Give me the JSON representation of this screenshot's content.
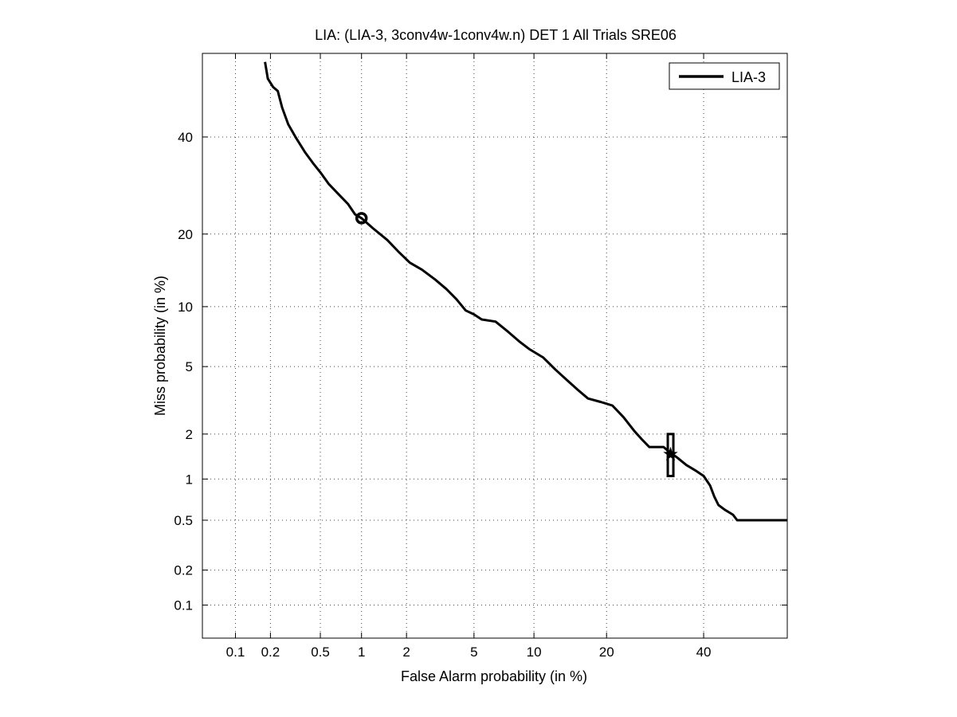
{
  "chart_data": {
    "type": "line",
    "title": "LIA: (LIA-3, 3conv4w-1conv4w.n) DET 1 All Trials SRE06",
    "xlabel": "False Alarm probability (in %)",
    "ylabel": "Miss probability (in %)",
    "x_scale": "normal-deviate (probit)",
    "y_scale": "normal-deviate (probit)",
    "xlim": [
      0.05,
      60
    ],
    "ylim": [
      0.05,
      60
    ],
    "x_ticks": [
      0.1,
      0.2,
      0.5,
      1,
      2,
      5,
      10,
      20,
      40
    ],
    "x_tick_labels": [
      "0.1",
      "0.2",
      "0.5",
      "1",
      "2",
      "5",
      "10",
      "20",
      "40"
    ],
    "y_ticks": [
      0.1,
      0.2,
      0.5,
      1,
      2,
      5,
      10,
      20,
      40
    ],
    "y_tick_labels": [
      "0.1",
      "0.2",
      "0.5",
      "1",
      "2",
      "5",
      "10",
      "20",
      "40"
    ],
    "grid": true,
    "legend_position": "top-right",
    "series": [
      {
        "name": "LIA-3",
        "color": "#000000",
        "points": [
          [
            0.18,
            58
          ],
          [
            0.19,
            54
          ],
          [
            0.21,
            52
          ],
          [
            0.23,
            51
          ],
          [
            0.25,
            47
          ],
          [
            0.28,
            43
          ],
          [
            0.32,
            40
          ],
          [
            0.38,
            36.5
          ],
          [
            0.44,
            34
          ],
          [
            0.5,
            32
          ],
          [
            0.58,
            29.5
          ],
          [
            0.68,
            27.5
          ],
          [
            0.8,
            25.5
          ],
          [
            0.9,
            23.5
          ],
          [
            1.0,
            22.8
          ],
          [
            1.2,
            21
          ],
          [
            1.5,
            19
          ],
          [
            1.8,
            17
          ],
          [
            2.1,
            15.5
          ],
          [
            2.5,
            14.5
          ],
          [
            3.0,
            13.2
          ],
          [
            3.5,
            12
          ],
          [
            4.0,
            10.8
          ],
          [
            4.5,
            9.6
          ],
          [
            5.0,
            9.2
          ],
          [
            5.5,
            8.7
          ],
          [
            6.5,
            8.5
          ],
          [
            7.5,
            7.6
          ],
          [
            8.5,
            6.8
          ],
          [
            9.5,
            6.2
          ],
          [
            11,
            5.6
          ],
          [
            12.5,
            4.8
          ],
          [
            14,
            4.2
          ],
          [
            15.5,
            3.7
          ],
          [
            17,
            3.3
          ],
          [
            19,
            3.15
          ],
          [
            21,
            3.0
          ],
          [
            23,
            2.55
          ],
          [
            25,
            2.1
          ],
          [
            26.5,
            1.85
          ],
          [
            28,
            1.65
          ],
          [
            31,
            1.65
          ],
          [
            32,
            1.55
          ],
          [
            34,
            1.4
          ],
          [
            36,
            1.25
          ],
          [
            38,
            1.15
          ],
          [
            40,
            1.05
          ],
          [
            41.5,
            0.9
          ],
          [
            42.5,
            0.75
          ],
          [
            43.5,
            0.65
          ],
          [
            45,
            0.6
          ],
          [
            47,
            0.55
          ],
          [
            48,
            0.5
          ],
          [
            60,
            0.5
          ]
        ]
      }
    ],
    "markers": [
      {
        "kind": "min-dcf",
        "shape": "circle",
        "x": 1.0,
        "y": 22.8
      },
      {
        "kind": "actual-dcf",
        "shape": "box-with-star",
        "x": 32.5,
        "y": 1.5,
        "y_low": 1.05,
        "y_high": 2.0
      }
    ]
  }
}
